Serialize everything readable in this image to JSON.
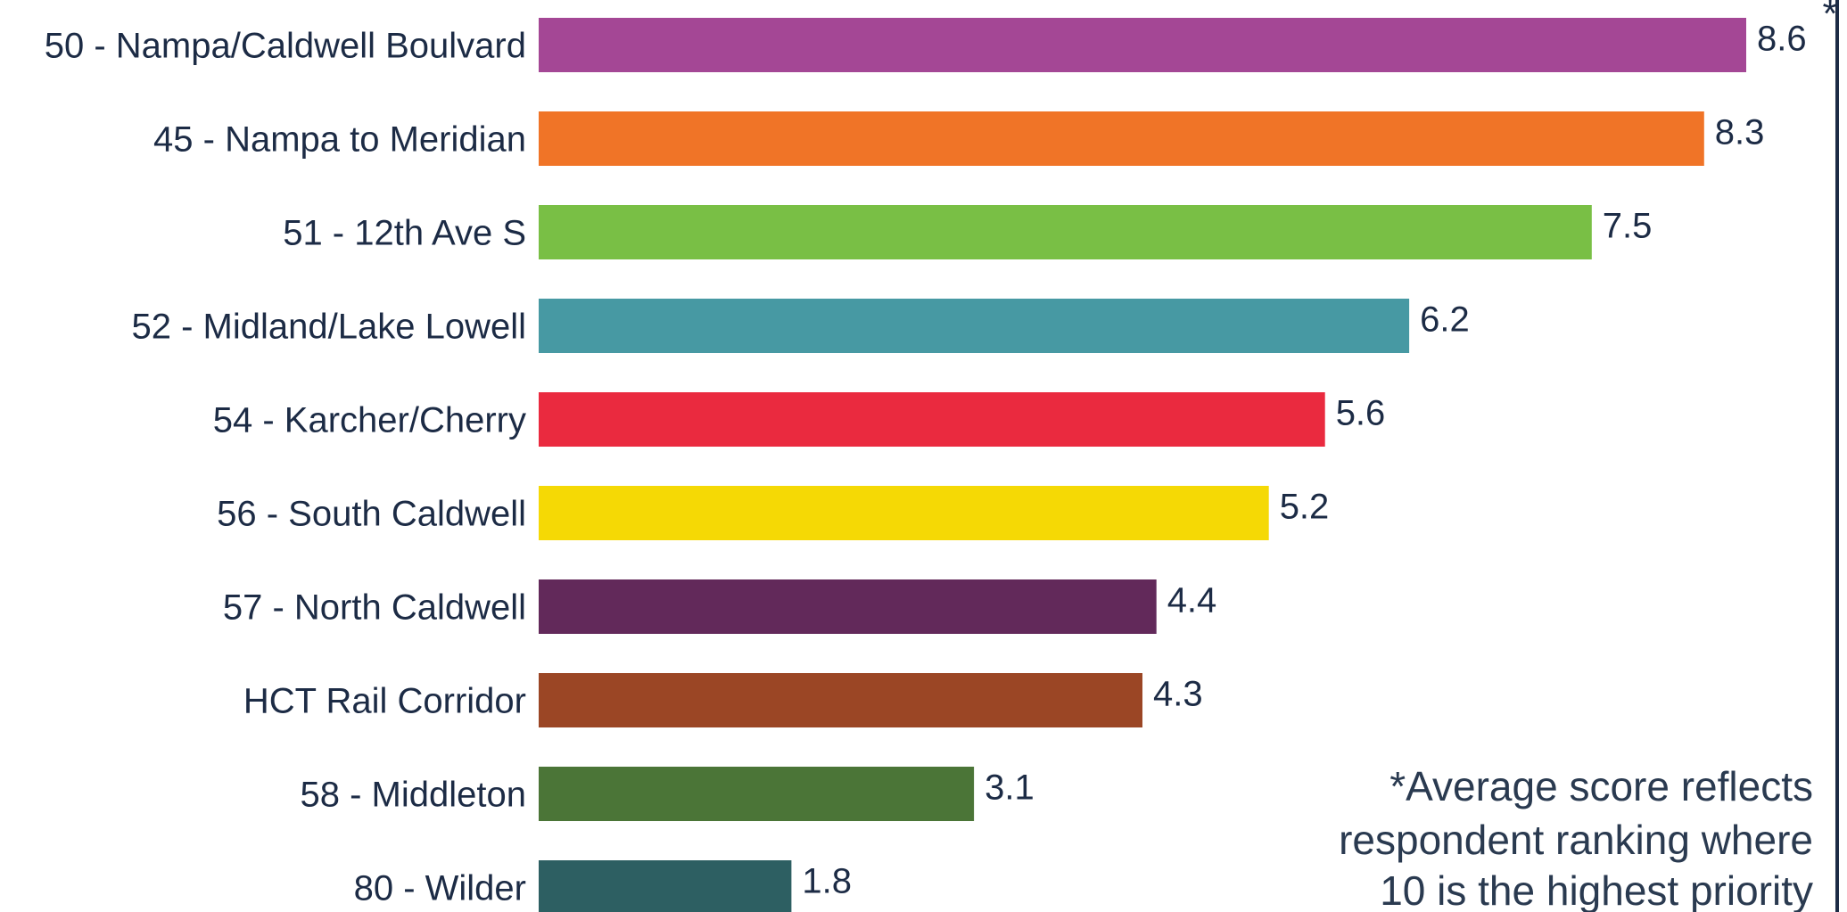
{
  "chart_data": {
    "type": "bar",
    "orientation": "horizontal",
    "categories": [
      "50 - Nampa/Caldwell Boulvard",
      "45 - Nampa to Meridian",
      "51 - 12th Ave S",
      "52 - Midland/Lake Lowell",
      "54 - Karcher/Cherry",
      "56 - South Caldwell",
      "57 - North Caldwell",
      "HCT Rail Corridor",
      "58 - Middleton",
      "80 - Wilder"
    ],
    "values": [
      8.6,
      8.3,
      7.5,
      6.2,
      5.6,
      5.2,
      4.4,
      4.3,
      3.1,
      1.8
    ],
    "value_labels": [
      "8.6",
      "8.3",
      "7.5",
      "6.2",
      "5.6",
      "5.2",
      "4.4",
      "4.3",
      "3.1",
      "1.8"
    ],
    "colors": [
      "#a44795",
      "#f07427",
      "#79bf45",
      "#4799a3",
      "#ea2a3f",
      "#f5d905",
      "#62295a",
      "#9b4625",
      "#4b7537",
      "#2d5f62"
    ],
    "xlim": [
      0,
      8.6
    ],
    "grid": false,
    "legend": "none",
    "asterisk": "*",
    "annotation": [
      "*Average score reflects",
      "respondent ranking where",
      "10 is the highest priority"
    ],
    "text_color": "#1c2b45",
    "border_color": "#1c2b45"
  }
}
